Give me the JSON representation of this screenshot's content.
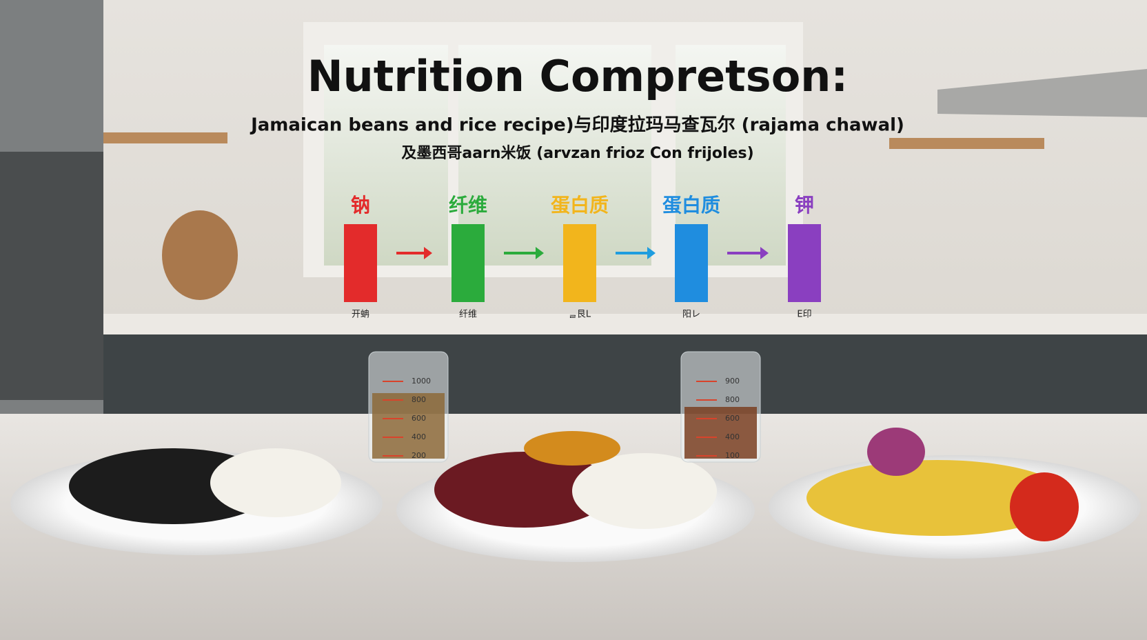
{
  "header": {
    "title": "Nutrition Compretson:",
    "subtitle_line1": "Jamaican beans and rice recipe)与印度拉玛马查瓦尔 (rajama chawal)",
    "subtitle_line2": "及墨西哥aarn米饭 (arvzan frioz Con frijoles)"
  },
  "nutrients": [
    {
      "label": "钠",
      "color": "#e32b2b",
      "caption": "开蚺"
    },
    {
      "label": "纤维",
      "color": "#2bab3c",
      "caption": "纤维"
    },
    {
      "label": "蛋白质",
      "color": "#f2b51c",
      "caption": "ᆯ艮L"
    },
    {
      "label": "蛋白质",
      "color": "#1f8ddf",
      "caption": "阳レ"
    },
    {
      "label": "钾",
      "color": "#8a3fc0",
      "caption": "E印"
    }
  ],
  "arrow_colors": [
    "#e32b2b",
    "#2bab3c",
    "#1f9ddf",
    "#8a3fc0"
  ],
  "cups": [
    {
      "marks": [
        "1000",
        "800",
        "600",
        "400",
        "200"
      ]
    },
    {
      "marks": [
        "900",
        "800",
        "600",
        "400",
        "100"
      ]
    }
  ]
}
